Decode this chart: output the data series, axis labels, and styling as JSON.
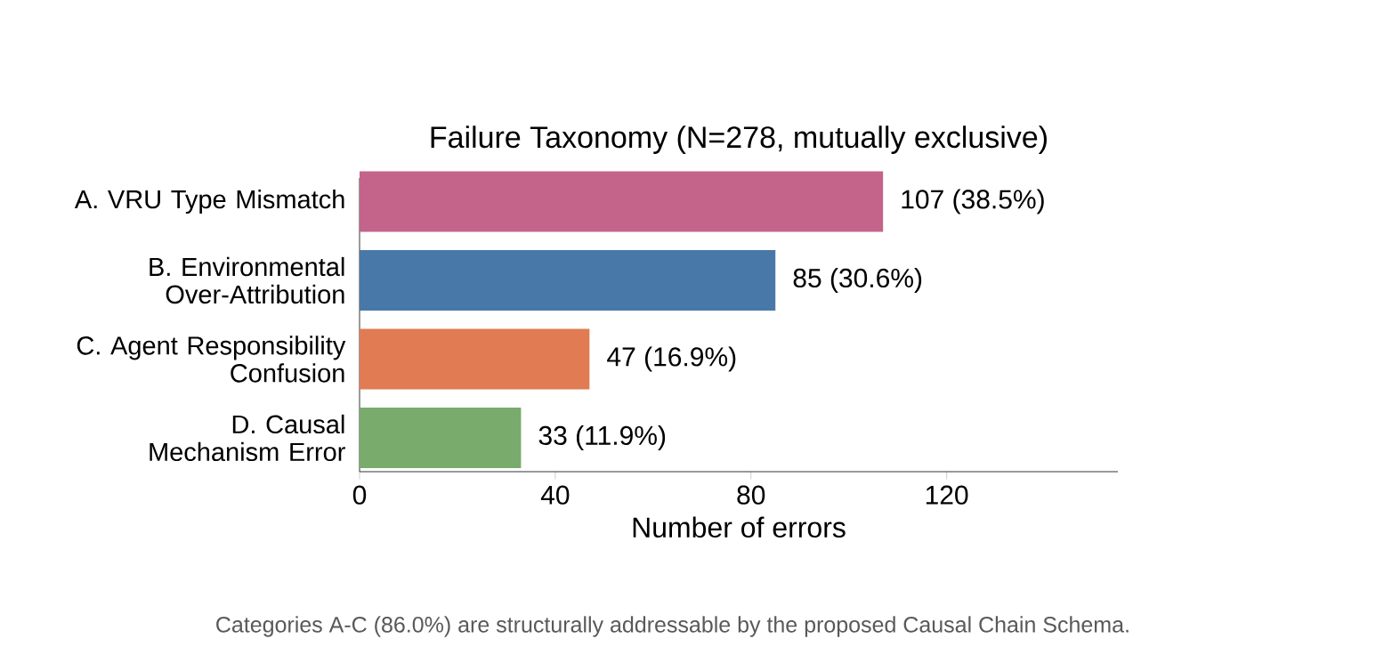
{
  "chart_data": {
    "type": "bar",
    "orientation": "horizontal",
    "title": "Failure Taxonomy  (N=278, mutually exclusive)",
    "categories": [
      "A. VRU Type Mismatch",
      "B. Environmental Over-Attribution",
      "C. Agent Responsibility Confusion",
      "D. Causal Mechanism Error"
    ],
    "values": [
      107,
      85,
      47,
      33
    ],
    "colors": [
      "#c4648a",
      "#4878a8",
      "#e07b54",
      "#78ab6c"
    ],
    "value_labels": [
      "107  (38.5%)",
      "85  (30.6%)",
      "47  (16.9%)",
      "33  (11.9%)"
    ],
    "xlabel": "Number of errors",
    "xlim": [
      0,
      155
    ],
    "xticks": [
      0,
      40,
      80,
      120
    ],
    "annotations": [
      "Categories A-C (86.0%) are structurally addressable by the proposed Causal Chain Schema."
    ]
  }
}
